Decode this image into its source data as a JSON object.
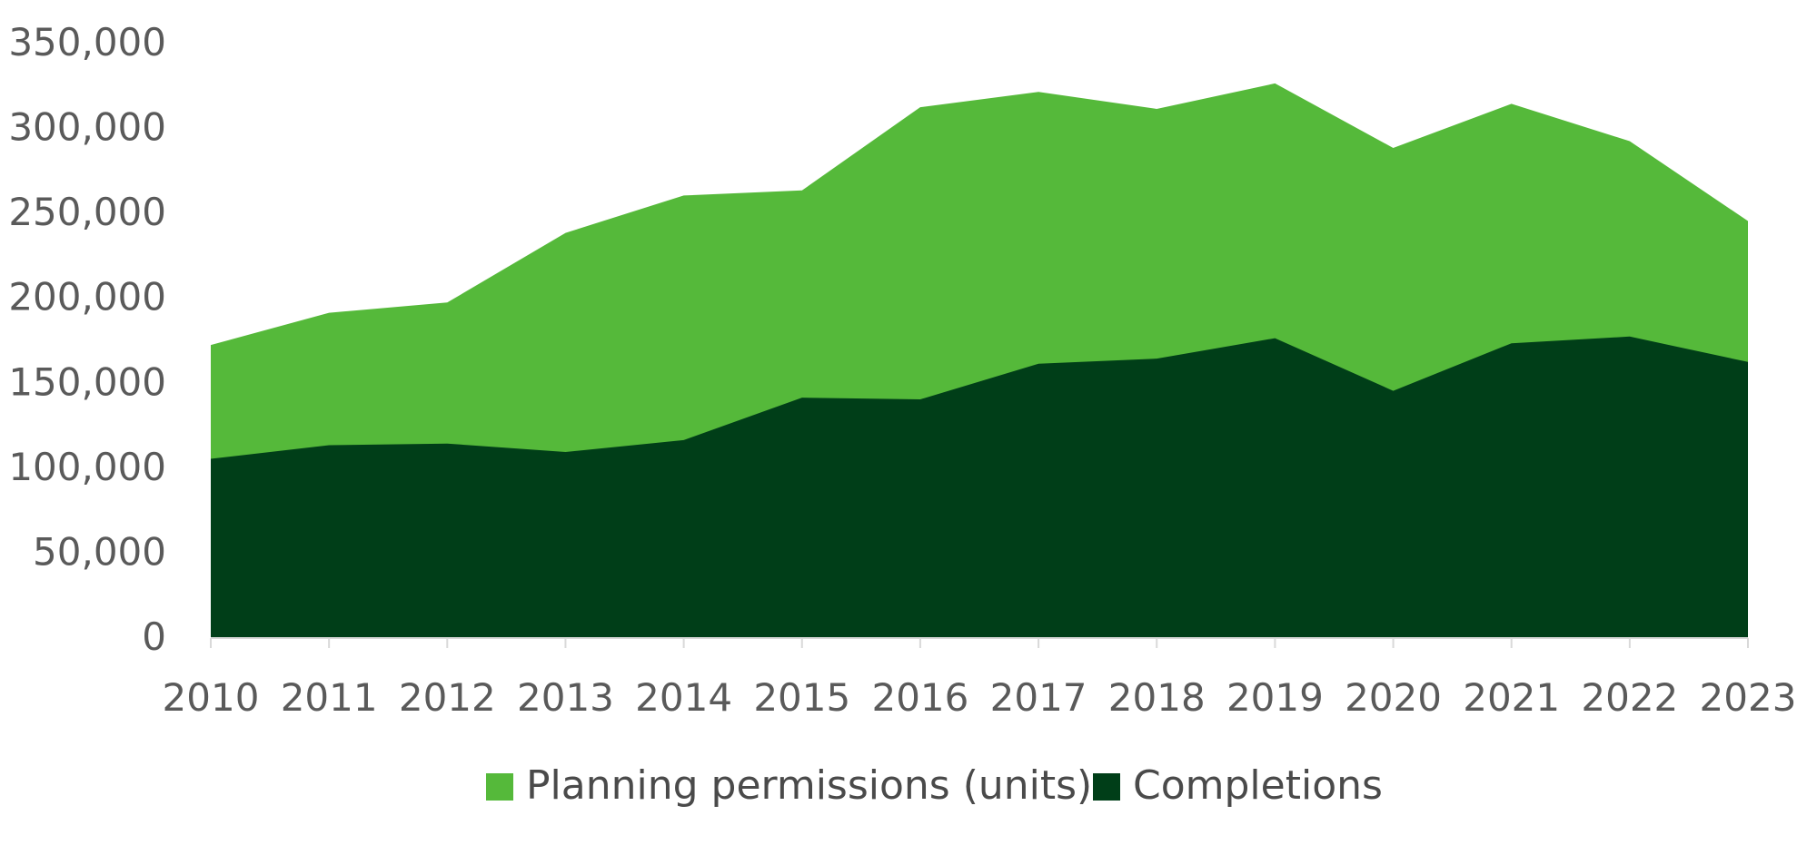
{
  "chart_data": {
    "type": "area",
    "stacking": "overlay",
    "categories": [
      "2010",
      "2011",
      "2012",
      "2013",
      "2014",
      "2015",
      "2016",
      "2017",
      "2018",
      "2019",
      "2020",
      "2021",
      "2022",
      "2023"
    ],
    "series": [
      {
        "name": "Planning permissions (units)",
        "color": "#55b93a",
        "values": [
          172000,
          191000,
          197000,
          238000,
          260000,
          263000,
          312000,
          321000,
          311000,
          326000,
          288000,
          314000,
          292000,
          245000
        ]
      },
      {
        "name": "Completions",
        "color": "#003e18",
        "values": [
          105000,
          113000,
          114000,
          109000,
          116000,
          141000,
          140000,
          161000,
          164000,
          176000,
          145000,
          173000,
          177000,
          162000
        ]
      }
    ],
    "y_ticks": [
      "0",
      "50,000",
      "100,000",
      "150,000",
      "200,000",
      "250,000",
      "300,000",
      "350,000"
    ],
    "ylim": [
      0,
      350000
    ],
    "grid": false,
    "legend_position": "bottom"
  }
}
